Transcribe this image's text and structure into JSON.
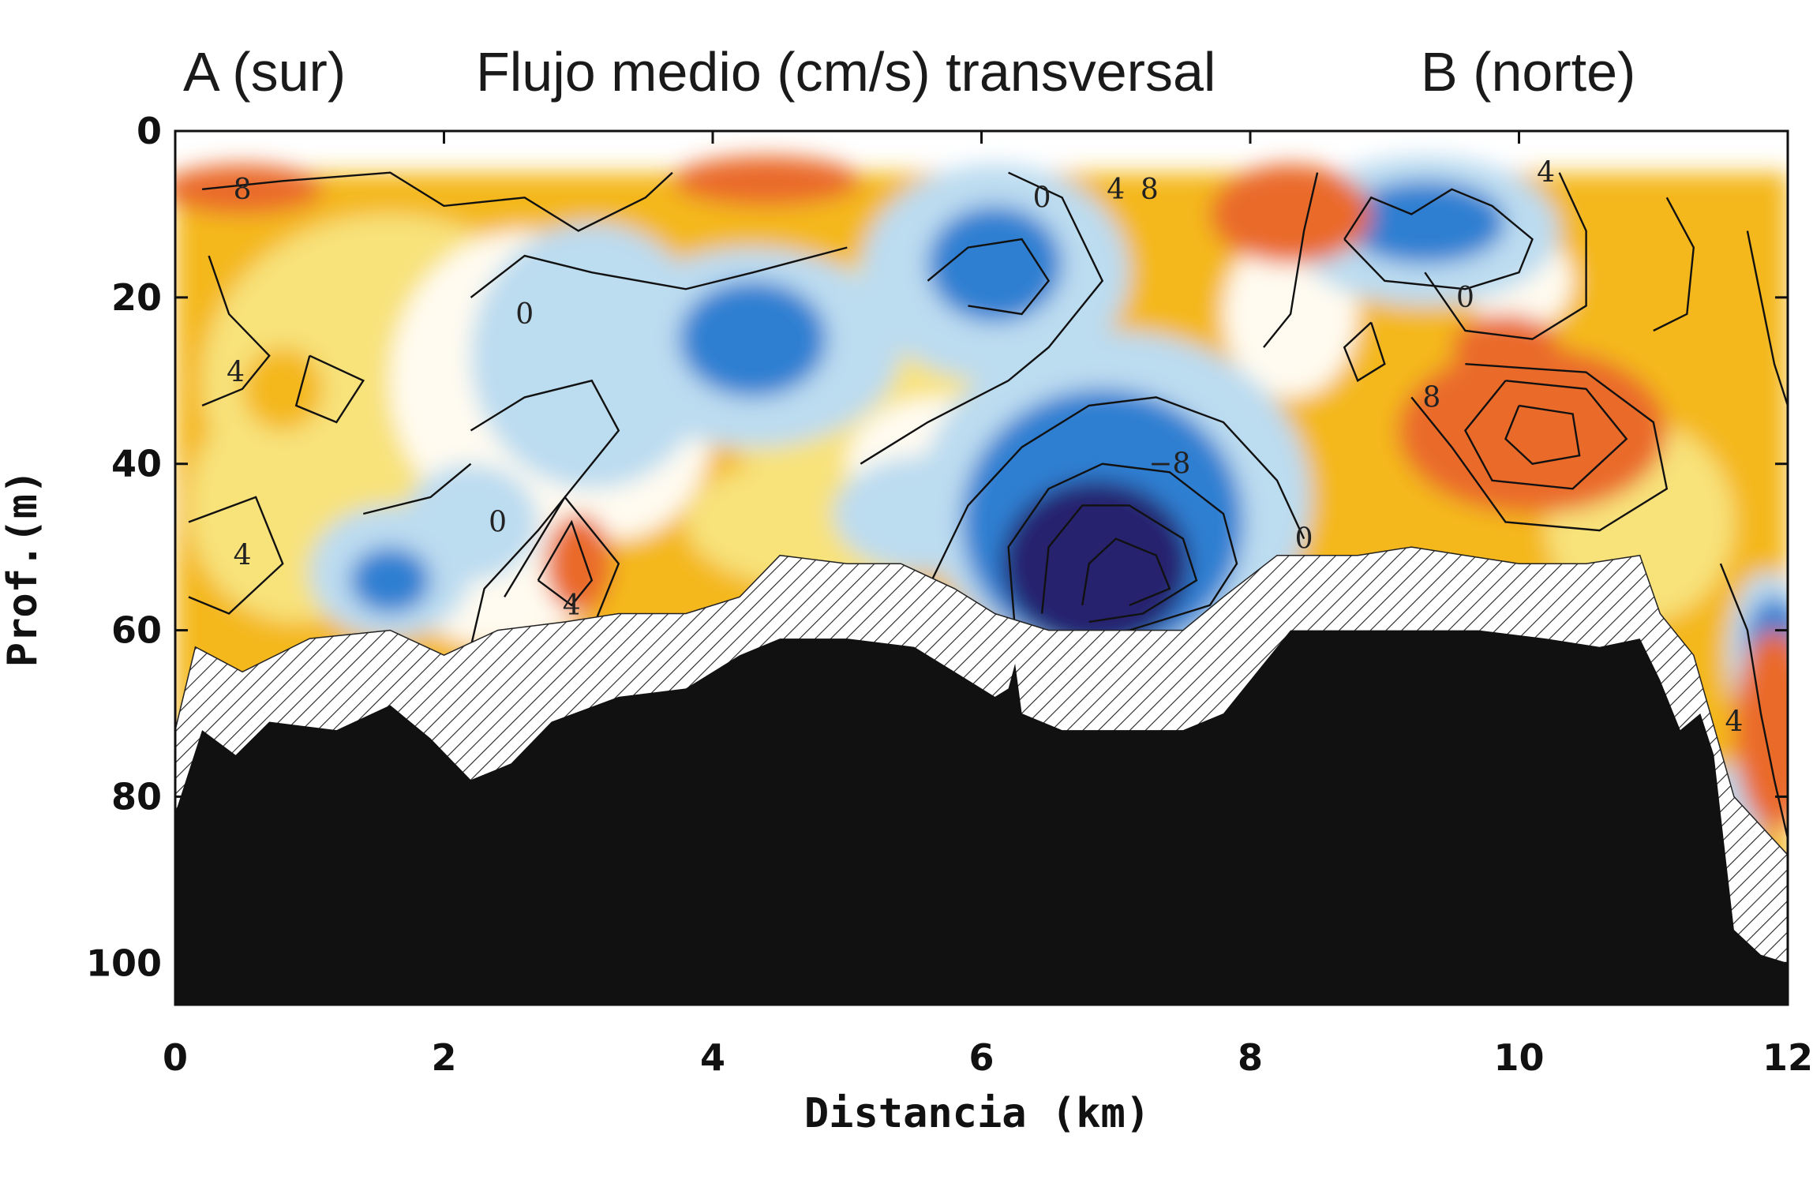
{
  "chart_data": {
    "type": "heatmap",
    "title_left": "A (sur)",
    "title": "Flujo medio (cm/s) transversal",
    "title_right": "B (norte)",
    "xlabel": "Distancia (km)",
    "ylabel": "Prof.(m)",
    "xlim": [
      0,
      12
    ],
    "ylim": [
      0,
      105
    ],
    "xticks": [
      0,
      2,
      4,
      6,
      8,
      10,
      12
    ],
    "yticks": [
      0,
      20,
      40,
      60,
      80,
      100
    ],
    "y_inverted": true,
    "grid": false,
    "legend": "none",
    "contour_levels": [
      -8,
      -4,
      0,
      4,
      8
    ],
    "contour_labels": [
      {
        "x": 0.5,
        "y": 7,
        "text": "8"
      },
      {
        "x": 0.45,
        "y": 29,
        "text": "4"
      },
      {
        "x": 0.5,
        "y": 51,
        "text": "4"
      },
      {
        "x": 2.6,
        "y": 22,
        "text": "0"
      },
      {
        "x": 2.4,
        "y": 47,
        "text": "0"
      },
      {
        "x": 2.95,
        "y": 57,
        "text": "4"
      },
      {
        "x": 6.45,
        "y": 8,
        "text": "0"
      },
      {
        "x": 7.0,
        "y": 7,
        "text": "4"
      },
      {
        "x": 7.25,
        "y": 7,
        "text": "8"
      },
      {
        "x": 7.4,
        "y": 40,
        "text": "−8"
      },
      {
        "x": 8.4,
        "y": 49,
        "text": "0"
      },
      {
        "x": 10.2,
        "y": 5,
        "text": "4"
      },
      {
        "x": 9.6,
        "y": 20,
        "text": "0"
      },
      {
        "x": 9.35,
        "y": 32,
        "text": "8"
      },
      {
        "x": 11.6,
        "y": 71,
        "text": "4"
      }
    ],
    "features": [
      {
        "type": "core",
        "sign": "negative",
        "x": 6.8,
        "y": 52,
        "value": -20
      },
      {
        "type": "core",
        "sign": "negative",
        "x": 6.1,
        "y": 17,
        "value": -6
      },
      {
        "type": "core",
        "sign": "negative",
        "x": 9.3,
        "y": 11,
        "value": -6
      },
      {
        "type": "core",
        "sign": "negative",
        "x": 4.3,
        "y": 26,
        "value": -4
      },
      {
        "type": "core",
        "sign": "positive",
        "x": 10.2,
        "y": 37,
        "value": 14
      },
      {
        "type": "core",
        "sign": "positive",
        "x": 3.0,
        "y": 52,
        "value": 6
      }
    ],
    "colors": {
      "neg_strong": "#25206e",
      "neg_mid": "#2f7fd2",
      "neg_weak": "#bcdcf0",
      "zero": "#fffbf0",
      "pos_weak": "#f8e27a",
      "pos_mid": "#f4b81a",
      "pos_strong": "#ea6a2c",
      "bottom": "#111111"
    }
  }
}
